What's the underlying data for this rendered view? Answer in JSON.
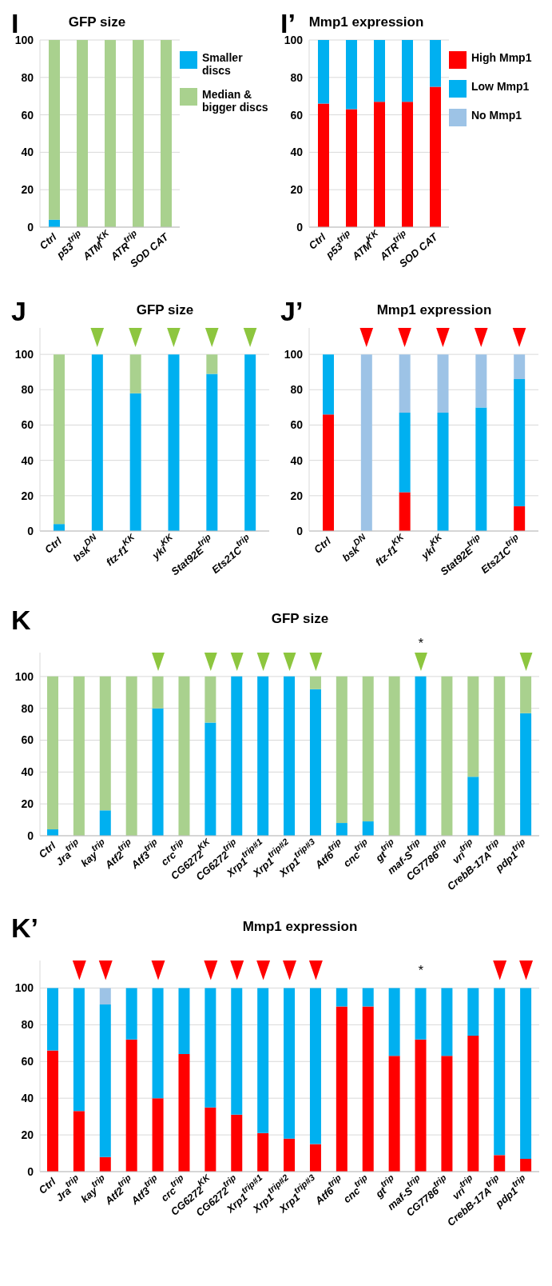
{
  "chart_data": [
    {
      "type": "bar",
      "stacked": true,
      "title": "GFP size",
      "annotations": [
        "I"
      ],
      "categories": [
        "Ctrl",
        "p53$^{trip}$",
        "ATM$^{KK}$",
        "ATR$^{trip}$",
        "SOD CAT"
      ],
      "series": [
        {
          "name": "Smaller discs",
          "color": "#00b0f0",
          "values": [
            4,
            0,
            0,
            0,
            0
          ]
        },
        {
          "name": "Median & bigger discs",
          "color": "#a9d18e",
          "values": [
            96,
            100,
            100,
            100,
            100
          ]
        }
      ],
      "ylim": [
        0,
        100
      ],
      "yticks": [
        0,
        20,
        40,
        60,
        80,
        100
      ],
      "grid": "y",
      "legend": "right"
    },
    {
      "type": "bar",
      "stacked": true,
      "title": "Mmp1 expression",
      "annotations": [
        "I’"
      ],
      "categories": [
        "Ctrl",
        "p53$^{trip}$",
        "ATM$^{KK}$",
        "ATR$^{trip}$",
        "SOD CAT"
      ],
      "series": [
        {
          "name": "High Mmp1",
          "color": "#ff0000",
          "values": [
            66,
            63,
            67,
            67,
            75
          ]
        },
        {
          "name": "Low Mmp1",
          "color": "#00b0f0",
          "values": [
            34,
            37,
            33,
            33,
            25
          ]
        },
        {
          "name": "No Mmp1",
          "color": "#9dc3e6",
          "values": [
            0,
            0,
            0,
            0,
            0
          ]
        }
      ],
      "ylim": [
        0,
        100
      ],
      "yticks": [
        0,
        20,
        40,
        60,
        80,
        100
      ],
      "grid": "y",
      "legend": "right"
    },
    {
      "type": "bar",
      "stacked": true,
      "title": "GFP size",
      "annotations": [
        "J"
      ],
      "marker": "triangle",
      "categories": [
        "Ctrl",
        "bsk$^{DN}$",
        "ftz-f1$^{KK}$",
        "yki$^{KK}$",
        "Stat92E$^{trip}$",
        "Ets21C$^{trip}$"
      ],
      "series": [
        {
          "color": "#00b0f0",
          "values": [
            4,
            100,
            78,
            100,
            89,
            100
          ]
        },
        {
          "color": "#a9d18e",
          "values": [
            96,
            0,
            22,
            0,
            11,
            0
          ]
        },
        {
          "type": "scatter",
          "color": "#8dc63f",
          "x": [
            "bsk$^{DN}$",
            "ftz-f1$^{KK}$",
            "yki$^{KK}$",
            "Stat92E$^{trip}$",
            "Ets21C$^{trip}$"
          ],
          "values": [
            110,
            110,
            110,
            110,
            110
          ]
        }
      ],
      "ylim": [
        0,
        115
      ],
      "yticks": [
        0,
        20,
        40,
        60,
        80,
        100
      ],
      "grid": "y"
    },
    {
      "type": "bar",
      "stacked": true,
      "title": "Mmp1 expression",
      "annotations": [
        "J’"
      ],
      "marker": "triangle",
      "categories": [
        "Ctrl",
        "bsk$^{DN}$",
        "ftz-f1$^{KK}$",
        "yki$^{KK}$",
        "Stat92E$^{trip}$",
        "Ets21C$^{trip}$"
      ],
      "series": [
        {
          "color": "#ff0000",
          "values": [
            66,
            0,
            22,
            0,
            0,
            14
          ]
        },
        {
          "color": "#00b0f0",
          "values": [
            34,
            0,
            45,
            67,
            70,
            72
          ]
        },
        {
          "color": "#9dc3e6",
          "values": [
            0,
            100,
            33,
            33,
            30,
            14
          ]
        },
        {
          "type": "scatter",
          "color": "#ff0000",
          "x": [
            "bsk$^{DN}$",
            "ftz-f1$^{KK}$",
            "yki$^{KK}$",
            "Stat92E$^{trip}$",
            "Ets21C$^{trip}$"
          ],
          "values": [
            110,
            110,
            110,
            110,
            110
          ]
        }
      ],
      "ylim": [
        0,
        115
      ],
      "yticks": [
        0,
        20,
        40,
        60,
        80,
        100
      ],
      "grid": "y"
    },
    {
      "type": "bar",
      "stacked": true,
      "title": "GFP size",
      "annotations": [
        "K",
        {
          "text": "*",
          "x": "maf-S$^{trip}$",
          "y": 110
        }
      ],
      "marker": "triangle",
      "categories": [
        "Ctrl",
        "Jra$^{trip}$",
        "kay$^{trip}$",
        "Atf2$^{trip}$",
        "Atf3$^{trip}$",
        "crc$^{trip}$",
        "CG6272$^{KK}$",
        "CG6272$^{trip}$",
        "Xrp1$^{trip#1}$",
        "Xrp1$^{trip#2}$",
        "Xrp1$^{trip#3}$",
        "Atf6$^{trip}$",
        "cnc$^{trip}$",
        "gt$^{trip}$",
        "maf-S$^{trip}$",
        "CG7786$^{trip}$",
        "vri$^{trip}$",
        "CrebB-17A$^{trip}$",
        "pdp1$^{trip}$"
      ],
      "series": [
        {
          "color": "#00b0f0",
          "values": [
            4,
            0,
            16,
            0,
            80,
            0,
            71,
            100,
            100,
            100,
            92,
            8,
            9,
            0,
            100,
            0,
            37,
            0,
            77
          ]
        },
        {
          "color": "#a9d18e",
          "values": [
            96,
            100,
            84,
            100,
            20,
            100,
            29,
            0,
            0,
            0,
            8,
            92,
            91,
            100,
            0,
            100,
            63,
            100,
            23
          ]
        },
        {
          "type": "scatter",
          "color": "#8dc63f",
          "x": [
            "Atf3$^{trip}$",
            "CG6272$^{KK}$",
            "CG6272$^{trip}$",
            "Xrp1$^{trip#1}$",
            "Xrp1$^{trip#2}$",
            "Xrp1$^{trip#3}$",
            "maf-S$^{trip}$",
            "pdp1$^{trip}$"
          ],
          "values": [
            110,
            110,
            110,
            110,
            110,
            110,
            110,
            110
          ]
        }
      ],
      "ylim": [
        0,
        115
      ],
      "yticks": [
        0,
        20,
        40,
        60,
        80,
        100
      ],
      "grid": "y"
    },
    {
      "type": "bar",
      "stacked": true,
      "title": "Mmp1 expression",
      "annotations": [
        "K’",
        {
          "text": "*",
          "x": "maf-S$^{trip}$",
          "y": 100
        }
      ],
      "marker": "triangle",
      "categories": [
        "Ctrl",
        "Jra$^{trip}$",
        "kay$^{trip}$",
        "Atf2$^{trip}$",
        "Atf3$^{trip}$",
        "crc$^{trip}$",
        "CG6272$^{KK}$",
        "CG6272$^{trip}$",
        "Xrp1$^{trip#1}$",
        "Xrp1$^{trip#2}$",
        "Xrp1$^{trip#3}$",
        "Atf6$^{trip}$",
        "cnc$^{trip}$",
        "gt$^{trip}$",
        "maf-S$^{trip}$",
        "CG7786$^{trip}$",
        "vri$^{trip}$",
        "CrebB-17A$^{trip}$",
        "pdp1$^{trip}$"
      ],
      "series": [
        {
          "color": "#ff0000",
          "values": [
            66,
            33,
            8,
            72,
            40,
            64,
            35,
            31,
            21,
            18,
            15,
            90,
            90,
            63,
            72,
            63,
            74,
            9,
            7
          ]
        },
        {
          "color": "#00b0f0",
          "values": [
            34,
            67,
            83,
            28,
            60,
            36,
            65,
            69,
            79,
            82,
            85,
            10,
            10,
            37,
            28,
            37,
            26,
            91,
            93
          ]
        },
        {
          "color": "#9dc3e6",
          "values": [
            0,
            0,
            9,
            0,
            0,
            0,
            0,
            0,
            0,
            0,
            0,
            0,
            0,
            0,
            0,
            0,
            0,
            0,
            0
          ]
        },
        {
          "type": "scatter",
          "color": "#ff0000",
          "x": [
            "Jra$^{trip}$",
            "kay$^{trip}$",
            "Atf3$^{trip}$",
            "CG6272$^{KK}$",
            "CG6272$^{trip}$",
            "Xrp1$^{trip#1}$",
            "Xrp1$^{trip#2}$",
            "Xrp1$^{trip#3}$",
            "CrebB-17A$^{trip}$",
            "pdp1$^{trip}$"
          ],
          "values": [
            110,
            110,
            110,
            110,
            110,
            110,
            110,
            110,
            110,
            110
          ]
        }
      ],
      "ylim": [
        0,
        115
      ],
      "yticks": [
        0,
        20,
        40,
        60,
        80,
        100
      ],
      "grid": "y"
    }
  ]
}
